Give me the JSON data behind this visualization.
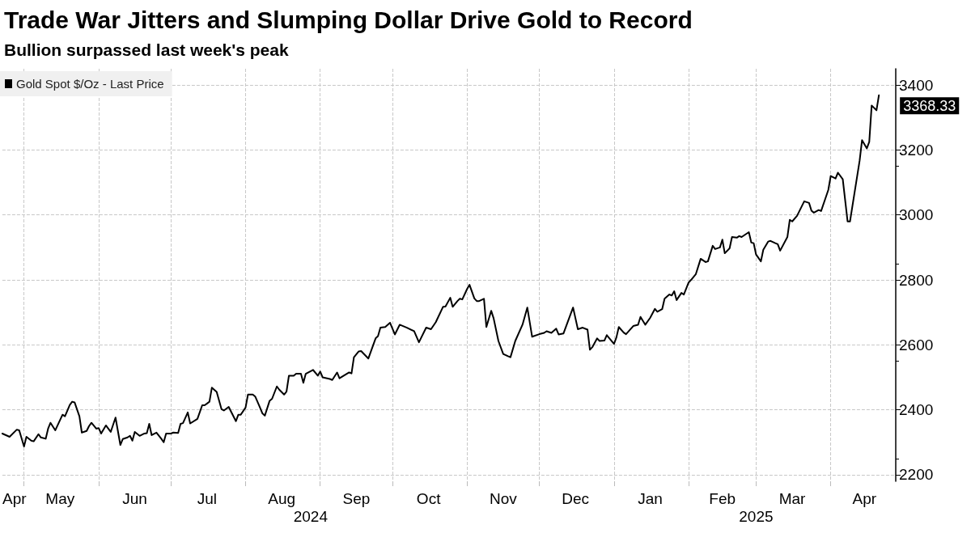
{
  "chart_data": {
    "type": "line",
    "title": "Trade War Jitters and Slumping Dollar Drive Gold to Record",
    "subtitle": "Bullion surpassed last week's peak",
    "x2lim": [
      "2024-04-22",
      "2025-04-28"
    ],
    "x2ticks": [
      {
        "value": "2024-08-28",
        "label": "2024"
      },
      {
        "value": "2025-03-01",
        "label": "2025"
      }
    ],
    "xlim": [
      "2024-04-22",
      "2025-04-28"
    ],
    "xticks": [
      {
        "value": "2024-04-27",
        "label": "Apr"
      },
      {
        "value": "2024-05-01",
        "label": null
      },
      {
        "value": "2024-05-16",
        "label": "May"
      },
      {
        "value": "2024-06-01",
        "label": null
      },
      {
        "value": "2024-06-16",
        "label": "Jun"
      },
      {
        "value": "2024-07-01",
        "label": null
      },
      {
        "value": "2024-07-16",
        "label": "Jul"
      },
      {
        "value": "2024-08-01",
        "label": null
      },
      {
        "value": "2024-08-16",
        "label": "Aug"
      },
      {
        "value": "2024-09-01",
        "label": null
      },
      {
        "value": "2024-09-16",
        "label": "Sep"
      },
      {
        "value": "2024-10-01",
        "label": null
      },
      {
        "value": "2024-10-16",
        "label": "Oct"
      },
      {
        "value": "2024-11-01",
        "label": null
      },
      {
        "value": "2024-11-16",
        "label": "Nov"
      },
      {
        "value": "2024-12-01",
        "label": null
      },
      {
        "value": "2024-12-16",
        "label": "Dec"
      },
      {
        "value": "2025-01-01",
        "label": null
      },
      {
        "value": "2025-01-16",
        "label": "Jan"
      },
      {
        "value": "2025-02-01",
        "label": null
      },
      {
        "value": "2025-02-15",
        "label": "Feb"
      },
      {
        "value": "2025-03-01",
        "label": null
      },
      {
        "value": "2025-03-16",
        "label": "Mar"
      },
      {
        "value": "2025-04-01",
        "label": null
      },
      {
        "value": "2025-04-15",
        "label": "Apr"
      }
    ],
    "ylim": [
      2180,
      3450
    ],
    "yticks": [
      2200,
      2400,
      2600,
      2800,
      3000,
      3200,
      3400
    ],
    "grid": true,
    "legend": "top left",
    "marker": "none",
    "line_style": "solid",
    "series": [
      {
        "name": "Gold Spot $/Oz - Last Price",
        "color": "#000000",
        "x": [
          "2024-04-22",
          "2024-04-25",
          "2024-04-28",
          "2024-04-29",
          "2024-05-01",
          "2024-05-02",
          "2024-05-04",
          "2024-05-05",
          "2024-05-07",
          "2024-05-08",
          "2024-05-10",
          "2024-05-11",
          "2024-05-12",
          "2024-05-14",
          "2024-05-17",
          "2024-05-18",
          "2024-05-20",
          "2024-05-21",
          "2024-05-22",
          "2024-05-24",
          "2024-05-25",
          "2024-05-27",
          "2024-05-28",
          "2024-05-29",
          "2024-05-31",
          "2024-06-01",
          "2024-06-02",
          "2024-06-04",
          "2024-06-06",
          "2024-06-08",
          "2024-06-10",
          "2024-06-11",
          "2024-06-13",
          "2024-06-14",
          "2024-06-15",
          "2024-06-16",
          "2024-06-18",
          "2024-06-20",
          "2024-06-21",
          "2024-06-22",
          "2024-06-23",
          "2024-06-25",
          "2024-06-27",
          "2024-06-28",
          "2024-06-29",
          "2024-07-01",
          "2024-07-02",
          "2024-07-04",
          "2024-07-05",
          "2024-07-06",
          "2024-07-08",
          "2024-07-09",
          "2024-07-12",
          "2024-07-14",
          "2024-07-15",
          "2024-07-17",
          "2024-07-18",
          "2024-07-20",
          "2024-07-22",
          "2024-07-23",
          "2024-07-25",
          "2024-07-26",
          "2024-07-28",
          "2024-07-29",
          "2024-07-30",
          "2024-08-01",
          "2024-08-02",
          "2024-08-04",
          "2024-08-05",
          "2024-08-07",
          "2024-08-08",
          "2024-08-09",
          "2024-08-11",
          "2024-08-12",
          "2024-08-14",
          "2024-08-15",
          "2024-08-17",
          "2024-08-18",
          "2024-08-19",
          "2024-08-21",
          "2024-08-22",
          "2024-08-24",
          "2024-08-25",
          "2024-08-26",
          "2024-08-29",
          "2024-08-31",
          "2024-09-01",
          "2024-09-02",
          "2024-09-05",
          "2024-09-06",
          "2024-09-08",
          "2024-09-09",
          "2024-09-13",
          "2024-09-14",
          "2024-09-15",
          "2024-09-17",
          "2024-09-18",
          "2024-09-21",
          "2024-09-24",
          "2024-09-25",
          "2024-09-26",
          "2024-09-28",
          "2024-09-30",
          "2024-10-02",
          "2024-10-04",
          "2024-10-07",
          "2024-10-10",
          "2024-10-12",
          "2024-10-15",
          "2024-10-17",
          "2024-10-19",
          "2024-10-22",
          "2024-10-23",
          "2024-10-25",
          "2024-10-26",
          "2024-10-28",
          "2024-10-29",
          "2024-10-30",
          "2024-11-01",
          "2024-11-02",
          "2024-11-04",
          "2024-11-05",
          "2024-11-06",
          "2024-11-08",
          "2024-11-09",
          "2024-11-11",
          "2024-11-12",
          "2024-11-14",
          "2024-11-16",
          "2024-11-18",
          "2024-11-19",
          "2024-11-21",
          "2024-11-24",
          "2024-11-26",
          "2024-11-28",
          "2024-12-01",
          "2024-12-03",
          "2024-12-04",
          "2024-12-06",
          "2024-12-08",
          "2024-12-09",
          "2024-12-11",
          "2024-12-15",
          "2024-12-17",
          "2024-12-19",
          "2024-12-21",
          "2024-12-22",
          "2024-12-23",
          "2024-12-25",
          "2024-12-26",
          "2024-12-28",
          "2024-12-29",
          "2025-01-01",
          "2025-01-02",
          "2025-01-03",
          "2025-01-05",
          "2025-01-06",
          "2025-01-09",
          "2025-01-11",
          "2025-01-12",
          "2025-01-14",
          "2025-01-16",
          "2025-01-18",
          "2025-01-19",
          "2025-01-21",
          "2025-01-22",
          "2025-01-24",
          "2025-01-25",
          "2025-01-26",
          "2025-01-27",
          "2025-01-29",
          "2025-01-30",
          "2025-02-01",
          "2025-02-02",
          "2025-02-04",
          "2025-02-06",
          "2025-02-08",
          "2025-02-09",
          "2025-02-11",
          "2025-02-12",
          "2025-02-14",
          "2025-02-15",
          "2025-02-16",
          "2025-02-18",
          "2025-02-19",
          "2025-02-21",
          "2025-02-22",
          "2025-02-23",
          "2025-02-26",
          "2025-02-27",
          "2025-02-28",
          "2025-03-01",
          "2025-03-03",
          "2025-03-04",
          "2025-03-06",
          "2025-03-07",
          "2025-03-09",
          "2025-03-10",
          "2025-03-11",
          "2025-03-14",
          "2025-03-15",
          "2025-03-16",
          "2025-03-18",
          "2025-03-20",
          "2025-03-21",
          "2025-03-23",
          "2025-03-24",
          "2025-03-25",
          "2025-03-27",
          "2025-03-28",
          "2025-03-31",
          "2025-04-01",
          "2025-04-03",
          "2025-04-04",
          "2025-04-06",
          "2025-04-08",
          "2025-04-09",
          "2025-04-13",
          "2025-04-14",
          "2025-04-16",
          "2025-04-17",
          "2025-04-18",
          "2025-04-20",
          "2025-04-21"
        ],
        "values": [
          2327,
          2317,
          2339,
          2337,
          2287,
          2317,
          2305,
          2303,
          2325,
          2315,
          2311,
          2342,
          2360,
          2337,
          2385,
          2380,
          2415,
          2425,
          2423,
          2380,
          2330,
          2335,
          2350,
          2360,
          2342,
          2344,
          2327,
          2352,
          2332,
          2376,
          2292,
          2310,
          2315,
          2320,
          2305,
          2332,
          2320,
          2327,
          2328,
          2357,
          2322,
          2330,
          2311,
          2300,
          2327,
          2327,
          2330,
          2329,
          2357,
          2359,
          2392,
          2358,
          2372,
          2414,
          2414,
          2425,
          2468,
          2455,
          2402,
          2398,
          2409,
          2394,
          2365,
          2385,
          2385,
          2407,
          2447,
          2447,
          2441,
          2407,
          2389,
          2382,
          2428,
          2434,
          2472,
          2462,
          2447,
          2456,
          2505,
          2505,
          2511,
          2511,
          2483,
          2511,
          2523,
          2505,
          2518,
          2500,
          2495,
          2492,
          2515,
          2497,
          2515,
          2512,
          2562,
          2580,
          2581,
          2558,
          2620,
          2627,
          2653,
          2655,
          2668,
          2632,
          2662,
          2653,
          2642,
          2608,
          2653,
          2648,
          2670,
          2717,
          2718,
          2745,
          2717,
          2735,
          2742,
          2740,
          2772,
          2785,
          2743,
          2735,
          2735,
          2742,
          2655,
          2705,
          2682,
          2612,
          2572,
          2565,
          2562,
          2612,
          2662,
          2715,
          2625,
          2633,
          2637,
          2642,
          2637,
          2650,
          2632,
          2635,
          2715,
          2648,
          2653,
          2647,
          2585,
          2593,
          2620,
          2612,
          2613,
          2630,
          2603,
          2623,
          2655,
          2638,
          2633,
          2658,
          2662,
          2686,
          2662,
          2683,
          2711,
          2702,
          2710,
          2742,
          2755,
          2752,
          2765,
          2738,
          2760,
          2755,
          2792,
          2800,
          2818,
          2865,
          2855,
          2857,
          2905,
          2895,
          2900,
          2924,
          2882,
          2897,
          2932,
          2930,
          2935,
          2932,
          2947,
          2915,
          2913,
          2878,
          2857,
          2893,
          2918,
          2920,
          2913,
          2910,
          2890,
          2932,
          2985,
          2980,
          2997,
          3027,
          3042,
          3037,
          3013,
          3007,
          3015,
          3012,
          3077,
          3120,
          3112,
          3130,
          3110,
          2980,
          2980,
          3167,
          3230,
          3205,
          3225,
          3337,
          3322,
          3368.33
        ],
        "value_labels": [
          null,
          null,
          null,
          null,
          null,
          null,
          null,
          null,
          null,
          null,
          null,
          null,
          null,
          null,
          null,
          null,
          null,
          null,
          null,
          null,
          null,
          null,
          null,
          null,
          null,
          null,
          null,
          null,
          null,
          null,
          null,
          null,
          null,
          null,
          null,
          null,
          null,
          null,
          null,
          null,
          null,
          null,
          null,
          null,
          null,
          null,
          null,
          null,
          null,
          null,
          null,
          null,
          null,
          null,
          null,
          null,
          null,
          null,
          null,
          null,
          null,
          null,
          null,
          null,
          null,
          null,
          null,
          null,
          null,
          null,
          null,
          null,
          null,
          null,
          null,
          null,
          null,
          null,
          null,
          null,
          null,
          null,
          null,
          null,
          null,
          null,
          null,
          null,
          null,
          null,
          null,
          null,
          null,
          null,
          null,
          null,
          null,
          null,
          null,
          null,
          null,
          null,
          null,
          null,
          null,
          null,
          null,
          null,
          null,
          null,
          null,
          null,
          null,
          null,
          null,
          null,
          null,
          null,
          null,
          null,
          null,
          null,
          null,
          null,
          null,
          null,
          null,
          null,
          null,
          null,
          null,
          null,
          null,
          null,
          null,
          null,
          null,
          null,
          null,
          null,
          null,
          null,
          null,
          null,
          null,
          null,
          null,
          null,
          null,
          null,
          null,
          null,
          null,
          null,
          null,
          null,
          null,
          null,
          null,
          null,
          null,
          null,
          null,
          null,
          null,
          null,
          null,
          null,
          null,
          null,
          null,
          null,
          null,
          null,
          null,
          null,
          null,
          null,
          null,
          null,
          null,
          null,
          null,
          null,
          null,
          null,
          null,
          null,
          null,
          null,
          null,
          null,
          null,
          null,
          null,
          null,
          null,
          null,
          null,
          null,
          null,
          null,
          null,
          null,
          null,
          null,
          null,
          null,
          null,
          null,
          null,
          null,
          null,
          null,
          null,
          null,
          null,
          null,
          null,
          null,
          null,
          null,
          null,
          "3368.33"
        ]
      }
    ]
  }
}
